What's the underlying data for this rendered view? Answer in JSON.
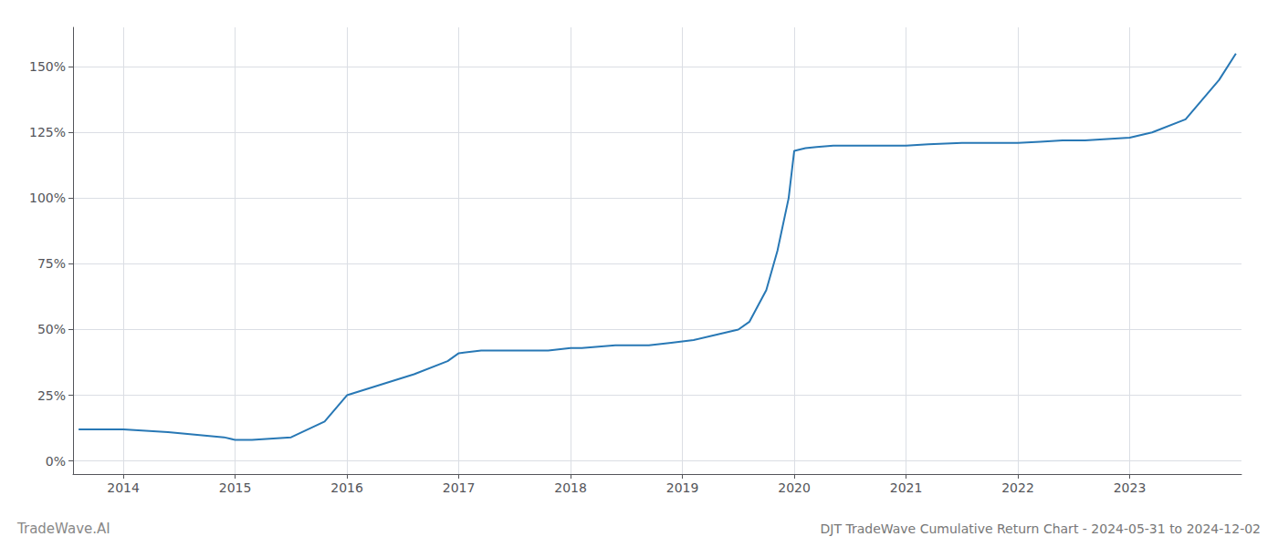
{
  "chart_data": {
    "type": "line",
    "title": "DJT TradeWave Cumulative Return Chart - 2024-05-31 to 2024-12-02",
    "annotations": [
      "TradeWave.AI"
    ],
    "x": [
      2013.6,
      2014.0,
      2014.4,
      2014.9,
      2015.0,
      2015.15,
      2015.5,
      2015.8,
      2016.0,
      2016.3,
      2016.6,
      2016.9,
      2017.0,
      2017.2,
      2017.5,
      2017.8,
      2018.0,
      2018.1,
      2018.4,
      2018.7,
      2018.9,
      2019.1,
      2019.3,
      2019.5,
      2019.6,
      2019.65,
      2019.75,
      2019.85,
      2019.95,
      2020.0,
      2020.1,
      2020.2,
      2020.35,
      2020.6,
      2020.9,
      2021.0,
      2021.2,
      2021.5,
      2021.8,
      2022.0,
      2022.2,
      2022.4,
      2022.6,
      2022.8,
      2023.0,
      2023.2,
      2023.5,
      2023.8,
      2023.95
    ],
    "values": [
      12,
      12,
      11,
      9,
      8,
      8,
      9,
      15,
      25,
      29,
      33,
      38,
      41,
      42,
      42,
      42,
      43,
      43,
      44,
      44,
      45,
      46,
      48,
      50,
      53,
      57,
      65,
      80,
      100,
      118,
      119,
      119.5,
      120,
      120,
      120,
      120,
      120.5,
      121,
      121,
      121,
      121.5,
      122,
      122,
      122.5,
      123,
      125,
      130,
      145,
      155
    ],
    "color": "#2878b5",
    "xlim": [
      2013.55,
      2024.0
    ],
    "ylim": [
      -5,
      165
    ],
    "xticks": [
      2014,
      2015,
      2016,
      2017,
      2018,
      2019,
      2020,
      2021,
      2022,
      2023
    ],
    "yticks": [
      {
        "value": 0,
        "label": "0%"
      },
      {
        "value": 25,
        "label": "25%"
      },
      {
        "value": 50,
        "label": "50%"
      },
      {
        "value": 75,
        "label": "75%"
      },
      {
        "value": 100,
        "label": "100%"
      },
      {
        "value": 125,
        "label": "125%"
      },
      {
        "value": 150,
        "label": "150%"
      }
    ],
    "grid": true
  }
}
